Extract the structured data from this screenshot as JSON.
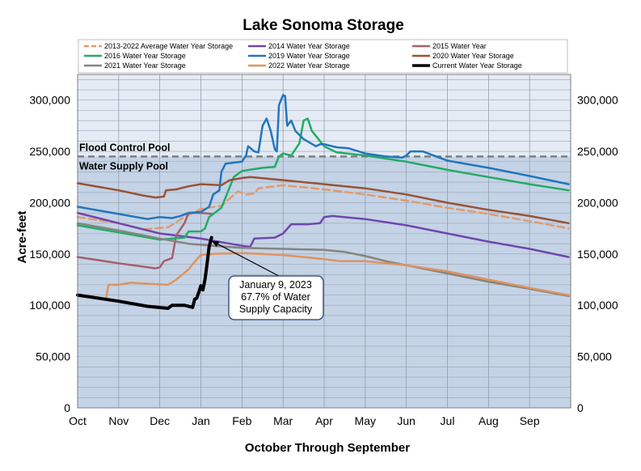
{
  "chart_data": {
    "type": "line",
    "title": "Lake Sonoma Storage",
    "xlabel": "October Through September",
    "ylabel": "Acre-feet",
    "x_unit": "month-of-water-year (0 = Oct 1)",
    "xlim": [
      0,
      12
    ],
    "ylim": [
      0,
      325000
    ],
    "x_tick_labels": [
      "Oct",
      "Nov",
      "Dec",
      "Jan",
      "Feb",
      "Mar",
      "Apr",
      "May",
      "Jun",
      "Jul",
      "Aug",
      "Sep"
    ],
    "y_ticks": [
      0,
      50000,
      100000,
      150000,
      200000,
      250000,
      300000
    ],
    "y_tick_labels": [
      "0",
      "50,000",
      "100,000",
      "150,000",
      "200,000",
      "250,000",
      "300,000"
    ],
    "grid": true,
    "legend_position": "top",
    "zones": [
      {
        "label": "Flood Control Pool",
        "from": 245000,
        "to": 325000,
        "color": "#e4ebf4"
      },
      {
        "label": "Water Supply Pool",
        "from": 0,
        "to": 245000,
        "color": "#c4d3e6"
      }
    ],
    "threshold": {
      "value": 245000,
      "color": "#7f7f7f"
    },
    "series": [
      {
        "name": "2013-2022 Average Water Year Storage",
        "color": "#e29b6a",
        "dashed": true,
        "width": 2.5,
        "points": [
          [
            0,
            186000
          ],
          [
            1,
            180000
          ],
          [
            1.6,
            174000
          ],
          [
            2.2,
            176000
          ],
          [
            2.6,
            186000
          ],
          [
            3.0,
            194000
          ],
          [
            3.5,
            197000
          ],
          [
            3.9,
            211000
          ],
          [
            4.1,
            208000
          ],
          [
            4.3,
            209000
          ],
          [
            4.4,
            214000
          ],
          [
            5,
            217000
          ],
          [
            6,
            213000
          ],
          [
            7,
            208000
          ],
          [
            8,
            202000
          ],
          [
            9,
            195000
          ],
          [
            10,
            189000
          ],
          [
            11,
            182000
          ],
          [
            11.95,
            175000
          ]
        ]
      },
      {
        "name": "2014 Water Year Storage",
        "color": "#7046ac",
        "width": 2.5,
        "points": [
          [
            0,
            190000
          ],
          [
            1,
            180000
          ],
          [
            2,
            170000
          ],
          [
            3,
            165000
          ],
          [
            4,
            158000
          ],
          [
            4.2,
            157000
          ],
          [
            4.3,
            165000
          ],
          [
            4.8,
            166000
          ],
          [
            5.0,
            170000
          ],
          [
            5.2,
            179000
          ],
          [
            5.6,
            179000
          ],
          [
            5.9,
            180000
          ],
          [
            6.0,
            186000
          ],
          [
            6.2,
            187000
          ],
          [
            7,
            184000
          ],
          [
            8,
            178000
          ],
          [
            9,
            170000
          ],
          [
            10,
            162000
          ],
          [
            11,
            155000
          ],
          [
            11.95,
            147000
          ]
        ]
      },
      {
        "name": "2015 Water Year",
        "color": "#a65f6c",
        "width": 2.5,
        "points": [
          [
            0,
            147000
          ],
          [
            1,
            141000
          ],
          [
            1.9,
            136000
          ],
          [
            2.0,
            137000
          ],
          [
            2.1,
            143000
          ],
          [
            2.3,
            146000
          ],
          [
            2.4,
            168000
          ],
          [
            2.6,
            180000
          ],
          [
            2.7,
            190000
          ],
          [
            3,
            190000
          ],
          [
            3.3,
            189000
          ]
        ]
      },
      {
        "name": "2016 Water Year Storage",
        "color": "#23ab66",
        "width": 2.5,
        "points": [
          [
            0,
            178000
          ],
          [
            1,
            171000
          ],
          [
            2,
            164000
          ],
          [
            2.6,
            166000
          ],
          [
            2.7,
            172000
          ],
          [
            3.0,
            172000
          ],
          [
            3.1,
            175000
          ],
          [
            3.2,
            186000
          ],
          [
            3.5,
            195000
          ],
          [
            3.8,
            225000
          ],
          [
            4,
            231000
          ],
          [
            4.5,
            234000
          ],
          [
            4.8,
            235000
          ],
          [
            4.9,
            245000
          ],
          [
            5.0,
            248000
          ],
          [
            5.2,
            246000
          ],
          [
            5.4,
            258000
          ],
          [
            5.5,
            280000
          ],
          [
            5.6,
            282000
          ],
          [
            5.7,
            270000
          ],
          [
            6,
            255000
          ],
          [
            6.3,
            249000
          ],
          [
            7,
            246000
          ],
          [
            8,
            240000
          ],
          [
            9,
            232000
          ],
          [
            10,
            225000
          ],
          [
            11,
            218000
          ],
          [
            11.95,
            212000
          ]
        ]
      },
      {
        "name": "2019 Water Year Storage",
        "color": "#2176be",
        "width": 2.5,
        "points": [
          [
            0,
            196000
          ],
          [
            1,
            189000
          ],
          [
            1.7,
            184000
          ],
          [
            2.0,
            186000
          ],
          [
            2.3,
            185000
          ],
          [
            2.5,
            187000
          ],
          [
            2.7,
            190000
          ],
          [
            3.0,
            191000
          ],
          [
            3.2,
            196000
          ],
          [
            3.3,
            208000
          ],
          [
            3.45,
            212000
          ],
          [
            3.5,
            230000
          ],
          [
            3.6,
            238000
          ],
          [
            4.0,
            240000
          ],
          [
            4.1,
            246000
          ],
          [
            4.15,
            255000
          ],
          [
            4.3,
            250000
          ],
          [
            4.4,
            249000
          ],
          [
            4.5,
            275000
          ],
          [
            4.6,
            282000
          ],
          [
            4.7,
            270000
          ],
          [
            4.8,
            252000
          ],
          [
            4.85,
            250000
          ],
          [
            4.9,
            295000
          ],
          [
            5.0,
            305000
          ],
          [
            5.05,
            304000
          ],
          [
            5.1,
            275000
          ],
          [
            5.2,
            280000
          ],
          [
            5.3,
            270000
          ],
          [
            5.5,
            262000
          ],
          [
            5.8,
            255000
          ],
          [
            5.9,
            257000
          ],
          [
            6.0,
            257000
          ],
          [
            6.3,
            254000
          ],
          [
            6.6,
            253000
          ],
          [
            7,
            248000
          ],
          [
            7.5,
            245000
          ],
          [
            7.9,
            244000
          ],
          [
            8.0,
            246000
          ],
          [
            8.1,
            250000
          ],
          [
            8.4,
            250000
          ],
          [
            8.6,
            247000
          ],
          [
            8.8,
            244000
          ],
          [
            9,
            241000
          ],
          [
            10,
            234000
          ],
          [
            11,
            226000
          ],
          [
            11.95,
            218000
          ]
        ]
      },
      {
        "name": "2020 Water Year Storage",
        "color": "#985335",
        "width": 2.5,
        "points": [
          [
            0,
            219000
          ],
          [
            1,
            212000
          ],
          [
            1.6,
            207000
          ],
          [
            1.9,
            205000
          ],
          [
            2.1,
            206000
          ],
          [
            2.15,
            212000
          ],
          [
            2.4,
            213000
          ],
          [
            2.7,
            216000
          ],
          [
            3,
            218000
          ],
          [
            3.5,
            217000
          ],
          [
            3.7,
            222000
          ],
          [
            4,
            224000
          ],
          [
            4.2,
            225000
          ],
          [
            5,
            222000
          ],
          [
            6,
            218000
          ],
          [
            7,
            214000
          ],
          [
            8,
            208000
          ],
          [
            9,
            200000
          ],
          [
            10,
            193000
          ],
          [
            11,
            187000
          ],
          [
            11.95,
            180000
          ]
        ]
      },
      {
        "name": "2021 Water Year Storage",
        "color": "#85857d",
        "width": 2.5,
        "points": [
          [
            0,
            180000
          ],
          [
            1,
            173000
          ],
          [
            2,
            165000
          ],
          [
            2.7,
            160000
          ],
          [
            3.3,
            158000
          ],
          [
            4,
            156000
          ],
          [
            5,
            155000
          ],
          [
            6,
            154000
          ],
          [
            6.5,
            152000
          ],
          [
            7.0,
            148000
          ],
          [
            7.5,
            143000
          ],
          [
            8,
            139000
          ],
          [
            9,
            131000
          ],
          [
            10,
            123000
          ],
          [
            11,
            116000
          ],
          [
            11.95,
            109000
          ]
        ]
      },
      {
        "name": "2022 Water Year Storage",
        "color": "#e0935e",
        "width": 2.5,
        "points": [
          [
            0.7,
            108000
          ],
          [
            0.75,
            120000
          ],
          [
            1.0,
            120000
          ],
          [
            1.3,
            122000
          ],
          [
            1.7,
            121000
          ],
          [
            2.2,
            120000
          ],
          [
            2.4,
            125000
          ],
          [
            2.7,
            135000
          ],
          [
            2.8,
            140000
          ],
          [
            3.0,
            149000
          ],
          [
            3.3,
            150000
          ],
          [
            4,
            151000
          ],
          [
            5,
            149000
          ],
          [
            6,
            145000
          ],
          [
            6.4,
            143000
          ],
          [
            7,
            143000
          ],
          [
            8,
            139000
          ],
          [
            9,
            133000
          ],
          [
            10,
            125000
          ],
          [
            11,
            117000
          ],
          [
            11.95,
            110000
          ]
        ]
      },
      {
        "name": "Current Water Year Storage",
        "color": "#000000",
        "width": 4,
        "points": [
          [
            0,
            110000
          ],
          [
            1,
            104000
          ],
          [
            1.7,
            99000
          ],
          [
            2.2,
            97000
          ],
          [
            2.3,
            100000
          ],
          [
            2.6,
            100000
          ],
          [
            2.8,
            98000
          ],
          [
            2.85,
            106000
          ],
          [
            2.9,
            107000
          ],
          [
            2.95,
            113000
          ],
          [
            3.0,
            119000
          ],
          [
            3.05,
            115000
          ],
          [
            3.1,
            125000
          ],
          [
            3.15,
            140000
          ],
          [
            3.2,
            157000
          ],
          [
            3.26,
            166000
          ]
        ]
      }
    ],
    "annotation": {
      "lines": [
        "January 9, 2023",
        "67.7% of Water",
        "Supply Capacity"
      ],
      "point": [
        3.26,
        166000
      ]
    }
  }
}
